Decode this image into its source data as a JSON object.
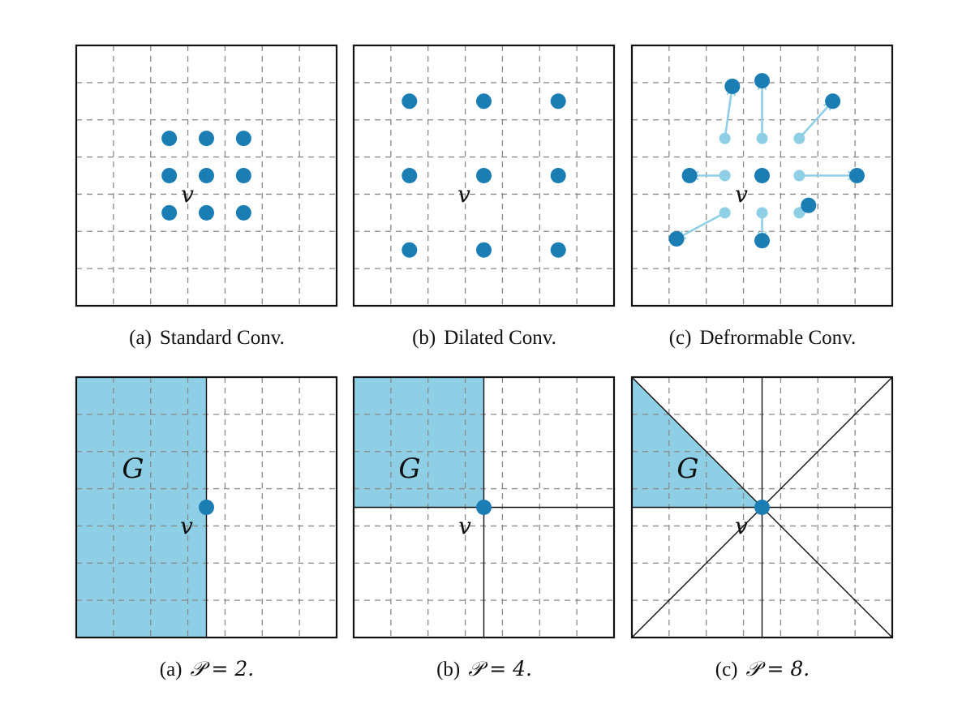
{
  "colors": {
    "dot": "#1a7db4",
    "light_dot": "#8fcfe6",
    "region": "#8ecfe6",
    "grid": "#8a8a8a",
    "frame": "#111111"
  },
  "top_row": [
    {
      "caption_tag": "(a)",
      "caption_text": "Standard Conv.",
      "center_label": "v"
    },
    {
      "caption_tag": "(b)",
      "caption_text": "Dilated Conv.",
      "center_label": "v"
    },
    {
      "caption_tag": "(c)",
      "caption_text": "Defrormable Conv.",
      "center_label": "v"
    }
  ],
  "bottom_row": [
    {
      "caption_tag": "(a)",
      "caption_math": "𝒫 = 2.",
      "center_label": "v",
      "region_label": "G",
      "partitions": 2
    },
    {
      "caption_tag": "(b)",
      "caption_math": "𝒫 = 4.",
      "center_label": "v",
      "region_label": "G",
      "partitions": 4
    },
    {
      "caption_tag": "(c)",
      "caption_math": "𝒫 = 8.",
      "center_label": "v",
      "region_label": "G",
      "partitions": 8
    }
  ]
}
